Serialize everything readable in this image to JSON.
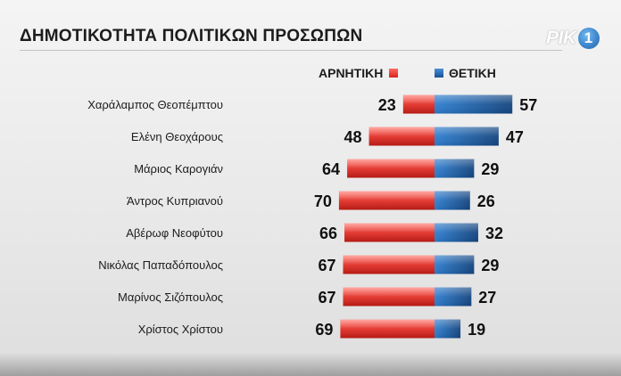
{
  "title": "ΔΗΜΟΤΙΚΟΤΗΤΑ ΠΟΛΙΤΙΚΩΝ ΠΡΟΣΩΠΩΝ",
  "logo": {
    "text": "ΡΙΚ",
    "number": "1"
  },
  "colors": {
    "negative": "#e2322a",
    "positive": "#1f5fa8"
  },
  "chart_data": {
    "type": "bar",
    "orientation": "horizontal-diverging",
    "title": "ΔΗΜΟΤΙΚΟΤΗΤΑ ΠΟΛΙΤΙΚΩΝ ΠΡΟΣΩΠΩΝ",
    "categories": [
      "Χαράλαμπος Θεοπέμπτου",
      "Ελένη Θεοχάρους",
      "Μάριος Καρογιάν",
      "Άντρος Κυπριανού",
      "Αβέρωφ Νεοφύτου",
      "Νικόλας Παπαδόπουλος",
      "Μαρίνος Σιζόπουλος",
      "Χρίστος Χρίστου"
    ],
    "series": [
      {
        "name": "ΑΡΝΗΤΙΚΗ",
        "values": [
          23,
          48,
          64,
          70,
          66,
          67,
          67,
          69
        ]
      },
      {
        "name": "ΘΕΤΙΚΗ",
        "values": [
          57,
          47,
          29,
          26,
          32,
          29,
          27,
          19
        ]
      }
    ],
    "legend": "top",
    "grid": false
  }
}
